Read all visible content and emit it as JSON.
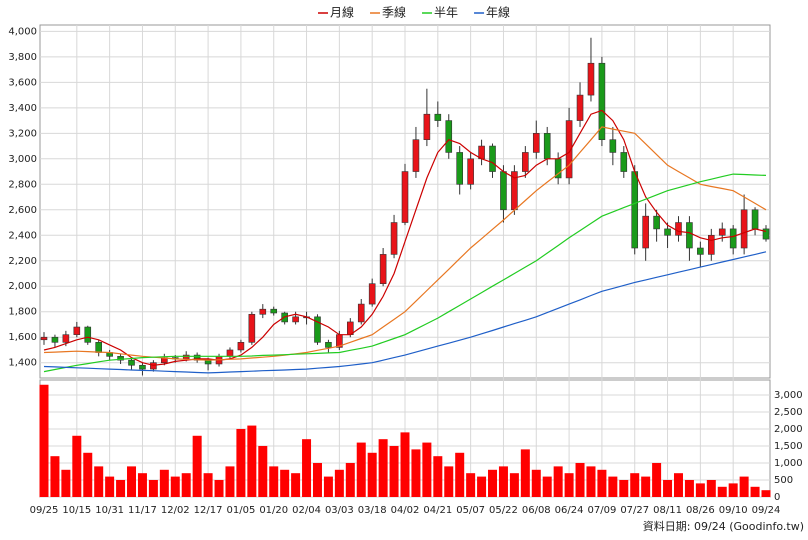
{
  "chart_data": [
    {
      "type": "candlestick",
      "categories": [
        "09/25",
        null,
        null,
        "10/15",
        null,
        null,
        "10/31",
        null,
        null,
        "11/17",
        null,
        null,
        "12/02",
        null,
        null,
        "12/17",
        null,
        null,
        "01/05",
        null,
        null,
        "01/20",
        null,
        null,
        "02/04",
        null,
        null,
        "03/03",
        null,
        null,
        "03/18",
        null,
        null,
        "04/02",
        null,
        null,
        "04/21",
        null,
        null,
        "05/07",
        null,
        null,
        "05/22",
        null,
        null,
        "06/08",
        null,
        null,
        "06/24",
        null,
        null,
        "07/09",
        null,
        null,
        "07/27",
        null,
        null,
        "08/11",
        null,
        null,
        "08/26",
        null,
        null,
        "09/10",
        null,
        null,
        "09/24"
      ],
      "open": [
        1580,
        1600,
        1560,
        1620,
        1680,
        1560,
        1480,
        1450,
        1420,
        1380,
        1350,
        1400,
        1440,
        1430,
        1460,
        1420,
        1390,
        1450,
        1500,
        1560,
        1780,
        1820,
        1790,
        1720,
        1760,
        1760,
        1560,
        1520,
        1620,
        1720,
        1860,
        2020,
        2250,
        2500,
        2900,
        3150,
        3350,
        3300,
        3050,
        2800,
        3000,
        3100,
        2900,
        2600,
        2900,
        3050,
        3200,
        3000,
        2850,
        3300,
        3500,
        3750,
        3150,
        3050,
        2900,
        2300,
        2550,
        2450,
        2400,
        2500,
        2300,
        2250,
        2400,
        2450,
        2300,
        2600,
        2450
      ],
      "high": [
        1640,
        1620,
        1650,
        1720,
        1690,
        1580,
        1500,
        1470,
        1440,
        1400,
        1420,
        1470,
        1460,
        1490,
        1480,
        1440,
        1470,
        1520,
        1580,
        1800,
        1860,
        1840,
        1800,
        1800,
        1800,
        1780,
        1580,
        1650,
        1750,
        1900,
        2060,
        2300,
        2560,
        2960,
        3250,
        3550,
        3450,
        3350,
        3100,
        3050,
        3150,
        3120,
        2950,
        2950,
        3100,
        3300,
        3250,
        3050,
        3400,
        3600,
        3950,
        3800,
        3250,
        3100,
        2950,
        2650,
        2600,
        2500,
        2550,
        2550,
        2350,
        2450,
        2500,
        2480,
        2720,
        2620,
        2480
      ],
      "low": [
        1540,
        1520,
        1530,
        1600,
        1540,
        1450,
        1420,
        1390,
        1340,
        1300,
        1330,
        1380,
        1400,
        1410,
        1400,
        1340,
        1370,
        1430,
        1480,
        1540,
        1750,
        1770,
        1700,
        1700,
        1700,
        1540,
        1480,
        1500,
        1600,
        1700,
        1840,
        2000,
        2220,
        2480,
        2850,
        3100,
        3250,
        3000,
        2720,
        2760,
        2950,
        2850,
        2500,
        2560,
        2850,
        3000,
        2950,
        2800,
        2800,
        3250,
        3450,
        3100,
        2950,
        2850,
        2250,
        2200,
        2350,
        2300,
        2350,
        2200,
        2150,
        2200,
        2350,
        2250,
        2250,
        2400,
        2350
      ],
      "close": [
        1600,
        1560,
        1620,
        1680,
        1560,
        1480,
        1450,
        1420,
        1380,
        1350,
        1400,
        1440,
        1430,
        1460,
        1420,
        1390,
        1450,
        1500,
        1560,
        1780,
        1820,
        1790,
        1720,
        1760,
        1760,
        1560,
        1520,
        1620,
        1720,
        1860,
        2020,
        2250,
        2500,
        2900,
        3150,
        3350,
        3300,
        3050,
        2800,
        3000,
        3100,
        2900,
        2600,
        2900,
        3050,
        3200,
        3000,
        2850,
        3300,
        3500,
        3750,
        3150,
        3050,
        2900,
        2300,
        2550,
        2450,
        2400,
        2500,
        2300,
        2250,
        2400,
        2450,
        2300,
        2600,
        2450,
        2370
      ],
      "up_color": "#e8141a",
      "down_color": "#1a9a1a",
      "series": [
        {
          "name": "月線",
          "color": "#cc0000",
          "values": [
            1500,
            1520,
            1550,
            1580,
            1600,
            1580,
            1540,
            1500,
            1440,
            1400,
            1380,
            1390,
            1410,
            1420,
            1430,
            1430,
            1420,
            1430,
            1460,
            1520,
            1600,
            1700,
            1760,
            1780,
            1760,
            1720,
            1680,
            1620,
            1620,
            1680,
            1780,
            1920,
            2100,
            2350,
            2600,
            2850,
            3050,
            3150,
            3120,
            3050,
            3000,
            2970,
            2900,
            2850,
            2870,
            2950,
            3000,
            3000,
            3050,
            3200,
            3350,
            3380,
            3300,
            3150,
            2900,
            2700,
            2580,
            2480,
            2430,
            2420,
            2380,
            2360,
            2380,
            2390,
            2420,
            2450,
            2430
          ]
        },
        {
          "name": "季線",
          "color": "#e87722",
          "values": [
            1480,
            1483,
            1487,
            1490,
            1487,
            1483,
            1480,
            1470,
            1460,
            1450,
            1443,
            1437,
            1430,
            1427,
            1423,
            1420,
            1423,
            1427,
            1430,
            1437,
            1443,
            1450,
            1460,
            1470,
            1480,
            1497,
            1513,
            1530,
            1560,
            1590,
            1620,
            1680,
            1740,
            1800,
            1883,
            1967,
            2050,
            2133,
            2217,
            2300,
            2373,
            2447,
            2520,
            2597,
            2673,
            2750,
            2817,
            2883,
            2950,
            3050,
            3150,
            3250,
            3233,
            3217,
            3200,
            3117,
            3033,
            2950,
            2900,
            2850,
            2800,
            2783,
            2767,
            2750,
            2700,
            2650,
            2600
          ]
        },
        {
          "name": "半年",
          "color": "#22cc22",
          "values": [
            1330,
            1347,
            1363,
            1380,
            1393,
            1407,
            1420,
            1427,
            1433,
            1440,
            1443,
            1447,
            1450,
            1450,
            1450,
            1450,
            1450,
            1450,
            1450,
            1453,
            1457,
            1460,
            1463,
            1467,
            1470,
            1473,
            1477,
            1480,
            1497,
            1513,
            1530,
            1560,
            1590,
            1620,
            1663,
            1707,
            1750,
            1800,
            1850,
            1900,
            1950,
            2000,
            2050,
            2100,
            2150,
            2200,
            2260,
            2320,
            2380,
            2437,
            2493,
            2550,
            2583,
            2617,
            2650,
            2683,
            2717,
            2750,
            2773,
            2797,
            2820,
            2840,
            2860,
            2880,
            2877,
            2873,
            2870
          ]
        },
        {
          "name": "年線",
          "color": "#1f5fc8",
          "values": [
            1370,
            1367,
            1363,
            1360,
            1357,
            1353,
            1350,
            1347,
            1343,
            1340,
            1337,
            1333,
            1330,
            1327,
            1323,
            1320,
            1323,
            1327,
            1330,
            1333,
            1337,
            1340,
            1343,
            1347,
            1350,
            1357,
            1363,
            1370,
            1380,
            1390,
            1400,
            1420,
            1440,
            1460,
            1483,
            1507,
            1530,
            1553,
            1577,
            1600,
            1627,
            1653,
            1680,
            1707,
            1733,
            1760,
            1793,
            1827,
            1860,
            1893,
            1927,
            1960,
            1983,
            2007,
            2030,
            2050,
            2070,
            2090,
            2110,
            2130,
            2150,
            2170,
            2190,
            2210,
            2230,
            2250,
            2270
          ]
        }
      ],
      "ylim": [
        1280,
        4050
      ],
      "yticks": [
        {
          "value": 1400,
          "label": "1,400"
        },
        {
          "value": 1600,
          "label": "1,600"
        },
        {
          "value": 1800,
          "label": "1,800"
        },
        {
          "value": 2000,
          "label": "2,000"
        },
        {
          "value": 2200,
          "label": "2,200"
        },
        {
          "value": 2400,
          "label": "2,400"
        },
        {
          "value": 2600,
          "label": "2,600"
        },
        {
          "value": 2800,
          "label": "2,800"
        },
        {
          "value": 3000,
          "label": "3,000"
        },
        {
          "value": 3200,
          "label": "3,200"
        },
        {
          "value": 3400,
          "label": "3,400"
        },
        {
          "value": 3600,
          "label": "3,600"
        },
        {
          "value": 3800,
          "label": "3,800"
        },
        {
          "value": 4000,
          "label": "4,000"
        }
      ],
      "grid": true,
      "axis_side": "left"
    },
    {
      "type": "bar",
      "values": [
        3300,
        1200,
        800,
        1800,
        1300,
        900,
        600,
        500,
        900,
        700,
        500,
        800,
        600,
        700,
        1800,
        700,
        500,
        900,
        2000,
        2100,
        1500,
        900,
        800,
        700,
        1700,
        1000,
        600,
        800,
        1000,
        1600,
        1300,
        1700,
        1500,
        1900,
        1400,
        1600,
        1200,
        900,
        1300,
        700,
        600,
        800,
        900,
        700,
        1400,
        800,
        600,
        900,
        700,
        1000,
        900,
        800,
        600,
        500,
        700,
        600,
        1000,
        500,
        700,
        500,
        400,
        500,
        300,
        400,
        600,
        300,
        200
      ],
      "color": "#ff0000",
      "ylim": [
        0,
        3440
      ],
      "yticks": [
        0,
        500,
        {
          "value": 1000,
          "label": "1,000"
        },
        {
          "value": 1500,
          "label": "1,500"
        },
        {
          "value": 2000,
          "label": "2,000"
        },
        {
          "value": 2500,
          "label": "2,500"
        },
        {
          "value": 3000,
          "label": "3,000"
        }
      ],
      "grid": true,
      "axis_side": "right"
    }
  ],
  "footer": "資料日期: 09/24 (Goodinfo.tw)"
}
